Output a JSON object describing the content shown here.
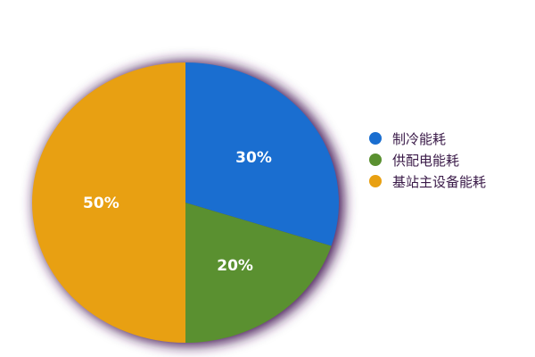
{
  "chart_data": {
    "type": "pie",
    "categories": [
      "制冷能耗",
      "供配电能耗",
      "基站主设备能耗"
    ],
    "values": [
      30,
      20,
      50
    ],
    "labels": [
      "30%",
      "20%",
      "50%"
    ],
    "colors": [
      "#1a6ed0",
      "#5a9030",
      "#e8a012"
    ],
    "legend": "right",
    "start": "top, clockwise"
  }
}
